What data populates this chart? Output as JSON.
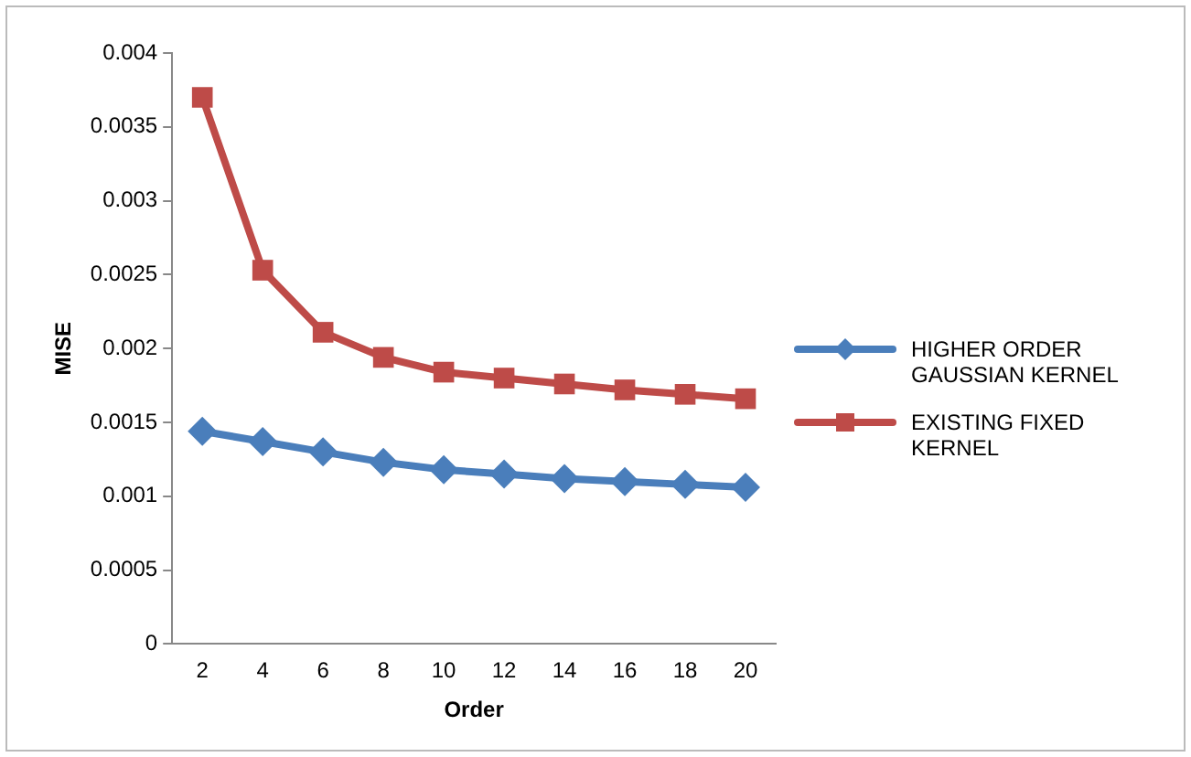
{
  "chart_data": {
    "type": "line",
    "xlabel": "Order",
    "ylabel": "MISE",
    "categories": [
      "2",
      "4",
      "6",
      "8",
      "10",
      "12",
      "14",
      "16",
      "18",
      "20"
    ],
    "series": [
      {
        "name": "HIGHER ORDER GAUSSIAN KERNEL",
        "color": "#4a7ebb",
        "marker": "diamond",
        "values": [
          0.00144,
          0.00137,
          0.0013,
          0.00123,
          0.00118,
          0.00115,
          0.00112,
          0.0011,
          0.00108,
          0.00106
        ]
      },
      {
        "name": "EXISTING FIXED KERNEL",
        "color": "#be4b48",
        "marker": "square",
        "values": [
          0.0037,
          0.00253,
          0.00211,
          0.00194,
          0.00184,
          0.0018,
          0.00176,
          0.00172,
          0.00169,
          0.00166
        ]
      }
    ],
    "ylim": [
      0,
      0.004
    ],
    "yticks": [
      0,
      0.0005,
      0.001,
      0.0015,
      0.002,
      0.0025,
      0.003,
      0.0035,
      0.004
    ],
    "grid": false,
    "legend": "right"
  }
}
